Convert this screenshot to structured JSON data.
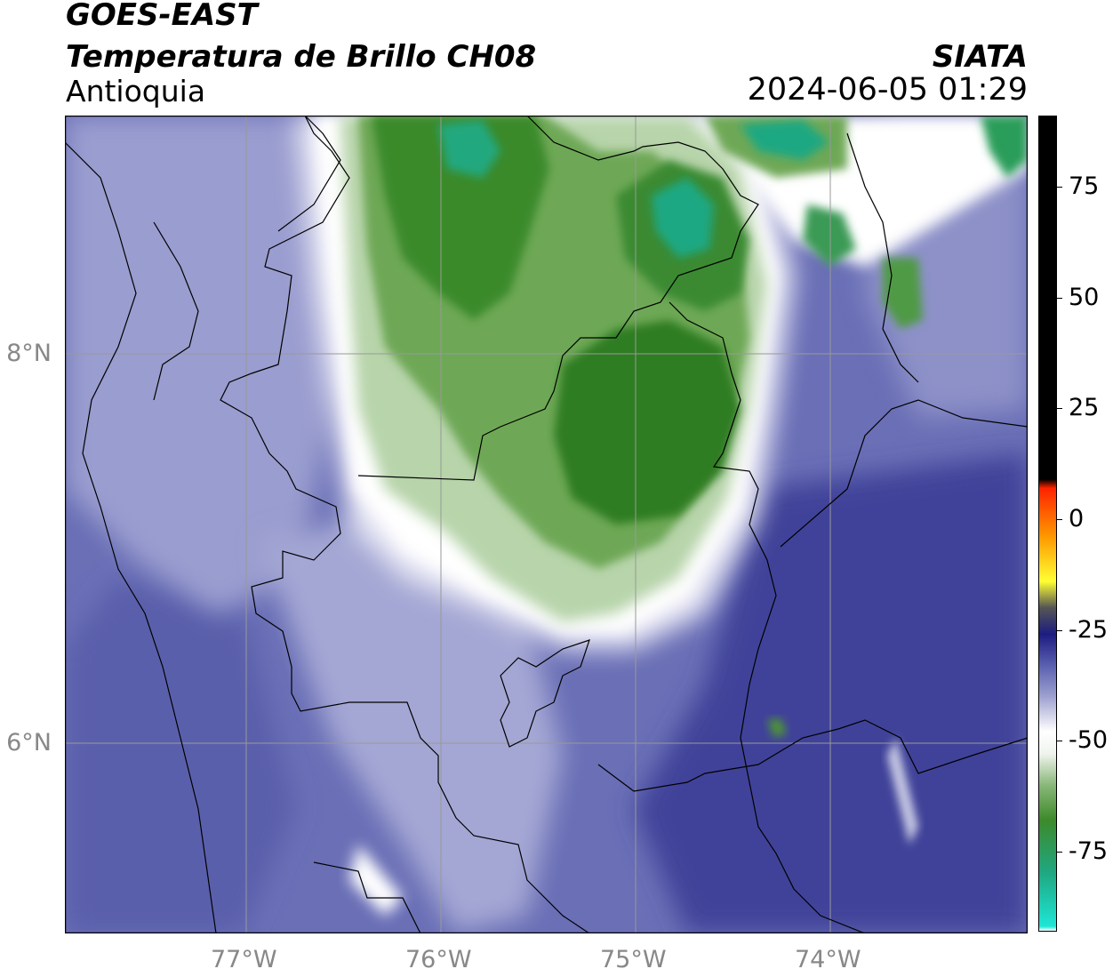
{
  "header": {
    "satellite": "GOES-EAST",
    "product": "Temperatura de Brillo CH08",
    "region": "Antioquia",
    "organization": "SIATA",
    "timestamp": "2024-06-05 01:29"
  },
  "map": {
    "lat_labels": [
      "8°N",
      "6°N"
    ],
    "lon_labels": [
      "77°W",
      "76°W",
      "75°W",
      "74°W"
    ],
    "gridlines": true,
    "colors": {
      "background_blue": "#5d62ad",
      "dark_blue": "#3b3f96",
      "light_lavender": "#c7c9e4",
      "white": "#ffffff",
      "green_light": "#a9cc9a",
      "green": "#4e9536",
      "green_dark": "#2f7d24",
      "teal": "#1fa882",
      "grid": "#999999",
      "border": "#000000"
    }
  },
  "colorbar": {
    "tick_labels": [
      "75",
      "50",
      "25",
      "0",
      "-25",
      "-50",
      "-75"
    ],
    "tick_values": [
      75,
      50,
      25,
      0,
      -25,
      -50,
      -75
    ],
    "range": [
      -93,
      91
    ],
    "stops": [
      {
        "value": -93,
        "color": "#ffffff"
      },
      {
        "value": -92,
        "color": "#1ee6d6"
      },
      {
        "value": -80,
        "color": "#1fa882"
      },
      {
        "value": -68,
        "color": "#3d8a2a"
      },
      {
        "value": -60,
        "color": "#8ab87a"
      },
      {
        "value": -53,
        "color": "#f0f4ee"
      },
      {
        "value": -48,
        "color": "#ffffff"
      },
      {
        "value": -40,
        "color": "#9da0cf"
      },
      {
        "value": -33,
        "color": "#5a5fb0"
      },
      {
        "value": -26,
        "color": "#1c1c80"
      },
      {
        "value": -20,
        "color": "#555555"
      },
      {
        "value": -14,
        "color": "#ffff33"
      },
      {
        "value": -4,
        "color": "#ff9900"
      },
      {
        "value": 7,
        "color": "#ff2200"
      },
      {
        "value": 9,
        "color": "#000000"
      },
      {
        "value": 91,
        "color": "#000000"
      }
    ]
  }
}
